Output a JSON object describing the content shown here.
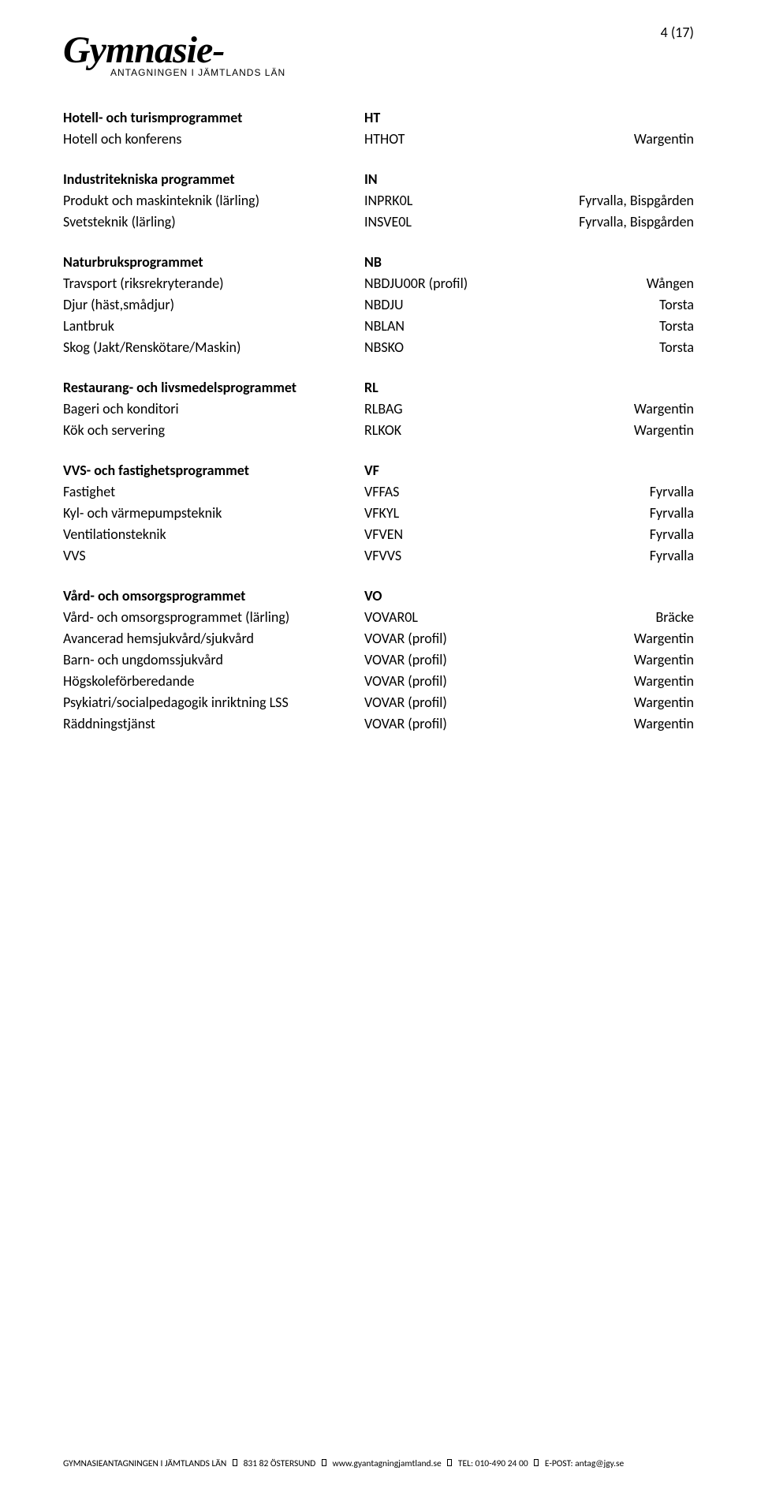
{
  "page_num": "4 (17)",
  "logo": {
    "main": "Gymnasie-",
    "sub": "ANTAGNINGEN I JÄMTLANDS LÄN"
  },
  "sections": [
    {
      "header": {
        "name": "Hotell- och turismprogrammet",
        "code": "HT"
      },
      "rows": [
        {
          "name": "Hotell och konferens",
          "code": "HTHOT",
          "loc": "Wargentin"
        }
      ]
    },
    {
      "header": {
        "name": "Industritekniska programmet",
        "code": "IN"
      },
      "rows": [
        {
          "name": "Produkt och maskinteknik (lärling)",
          "code": "INPRK0L",
          "loc": "Fyrvalla, Bispgården"
        },
        {
          "name": "Svetsteknik (lärling)",
          "code": "INSVE0L",
          "loc": "Fyrvalla, Bispgården"
        }
      ]
    },
    {
      "header": {
        "name": "Naturbruksprogrammet",
        "code": "NB"
      },
      "rows": [
        {
          "name": "Travsport (riksrekryterande)",
          "code": "NBDJU00R (profil)",
          "loc": "Wången"
        },
        {
          "name": "Djur (häst,smådjur)",
          "code": "NBDJU",
          "loc": "Torsta"
        },
        {
          "name": "Lantbruk",
          "code": "NBLAN",
          "loc": "Torsta"
        },
        {
          "name": "Skog (Jakt/Renskötare/Maskin)",
          "code": "NBSKO",
          "loc": "Torsta"
        }
      ]
    },
    {
      "header": {
        "name": "Restaurang- och livsmedelsprogrammet",
        "code": "RL"
      },
      "rows": [
        {
          "name": "Bageri och konditori",
          "code": "RLBAG",
          "loc": "Wargentin"
        },
        {
          "name": "Kök och servering",
          "code": "RLKOK",
          "loc": "Wargentin"
        }
      ]
    },
    {
      "header": {
        "name": "VVS- och fastighetsprogrammet",
        "code": "VF"
      },
      "rows": [
        {
          "name": "Fastighet",
          "code": "VFFAS",
          "loc": "Fyrvalla"
        },
        {
          "name": "Kyl- och värmepumpsteknik",
          "code": "VFKYL",
          "loc": "Fyrvalla"
        },
        {
          "name": "Ventilationsteknik",
          "code": "VFVEN",
          "loc": "Fyrvalla"
        },
        {
          "name": "VVS",
          "code": "VFVVS",
          "loc": "Fyrvalla"
        }
      ]
    },
    {
      "header": {
        "name": "Vård- och omsorgsprogrammet",
        "code": "VO"
      },
      "rows": [
        {
          "name": "Vård- och omsorgsprogrammet (lärling)",
          "code": "VOVAR0L",
          "loc": "Bräcke"
        },
        {
          "name": "Avancerad hemsjukvård/sjukvård",
          "code": "VOVAR (profil)",
          "loc": "Wargentin"
        },
        {
          "name": "Barn- och ungdomssjukvård",
          "code": "VOVAR (profil)",
          "loc": "Wargentin"
        },
        {
          "name": "Högskoleförberedande",
          "code": "VOVAR (profil)",
          "loc": "Wargentin"
        },
        {
          "name": "Psykiatri/socialpedagogik inriktning LSS",
          "code": "VOVAR (profil)",
          "loc": "Wargentin"
        },
        {
          "name": "Räddningstjänst",
          "code": "VOVAR (profil)",
          "loc": "Wargentin"
        }
      ]
    }
  ],
  "footer": {
    "parts": [
      "GYMNASIEANTAGNINGEN I JÄMTLANDS LÄN",
      "831 82 ÖSTERSUND",
      "www.gyantagningjamtland.se",
      "TEL: 010-490 24 00",
      "E-POST: antag@jgy.se"
    ]
  }
}
